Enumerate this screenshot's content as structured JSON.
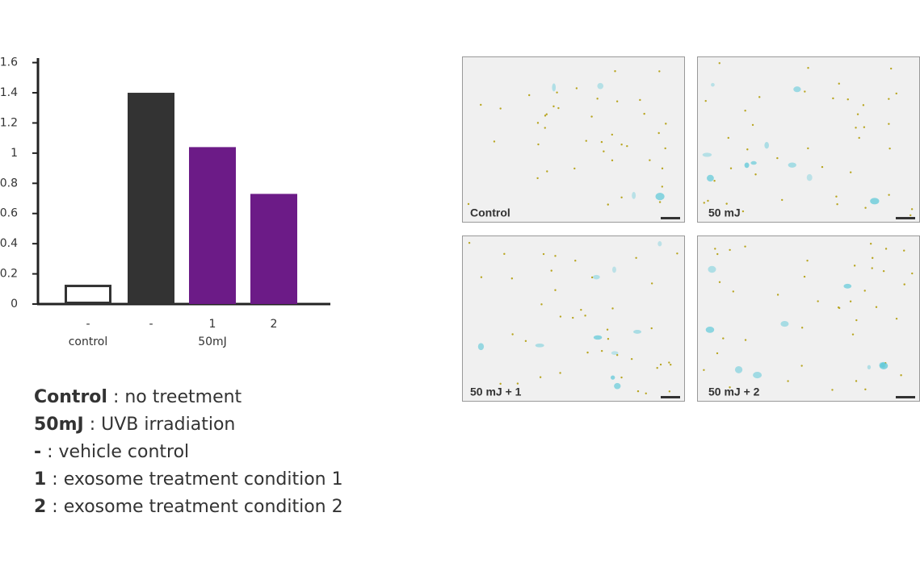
{
  "chart_data": {
    "type": "bar",
    "categories": [
      "-",
      "-",
      "1",
      "2"
    ],
    "groups": [
      {
        "name": "control",
        "count": 1
      },
      {
        "name": "50mJ",
        "count": 3
      }
    ],
    "values": [
      0.12,
      1.4,
      1.04,
      0.73
    ],
    "colors": [
      "#ffffff",
      "#333333",
      "#6c1b87",
      "#6c1b87"
    ],
    "ylim": [
      0,
      1.63
    ],
    "yticks": [
      0,
      0.2,
      0.4,
      0.6,
      0.8,
      1,
      1.2,
      1.4,
      1.6
    ]
  },
  "notes": [
    {
      "term": "Control",
      "text": " : no treetment"
    },
    {
      "term": "50mJ",
      "text": " : UVB irradiation"
    },
    {
      "term": "-",
      "text": " : vehicle control"
    },
    {
      "term": "1",
      "text": " : exosome treatment condition 1"
    },
    {
      "term": "2",
      "text": " : exosome treatment condition 2"
    }
  ],
  "panels": [
    {
      "label": "Control"
    },
    {
      "label": "50 mJ"
    },
    {
      "label": "50 mJ + 1"
    },
    {
      "label": "50 mJ + 2"
    }
  ]
}
